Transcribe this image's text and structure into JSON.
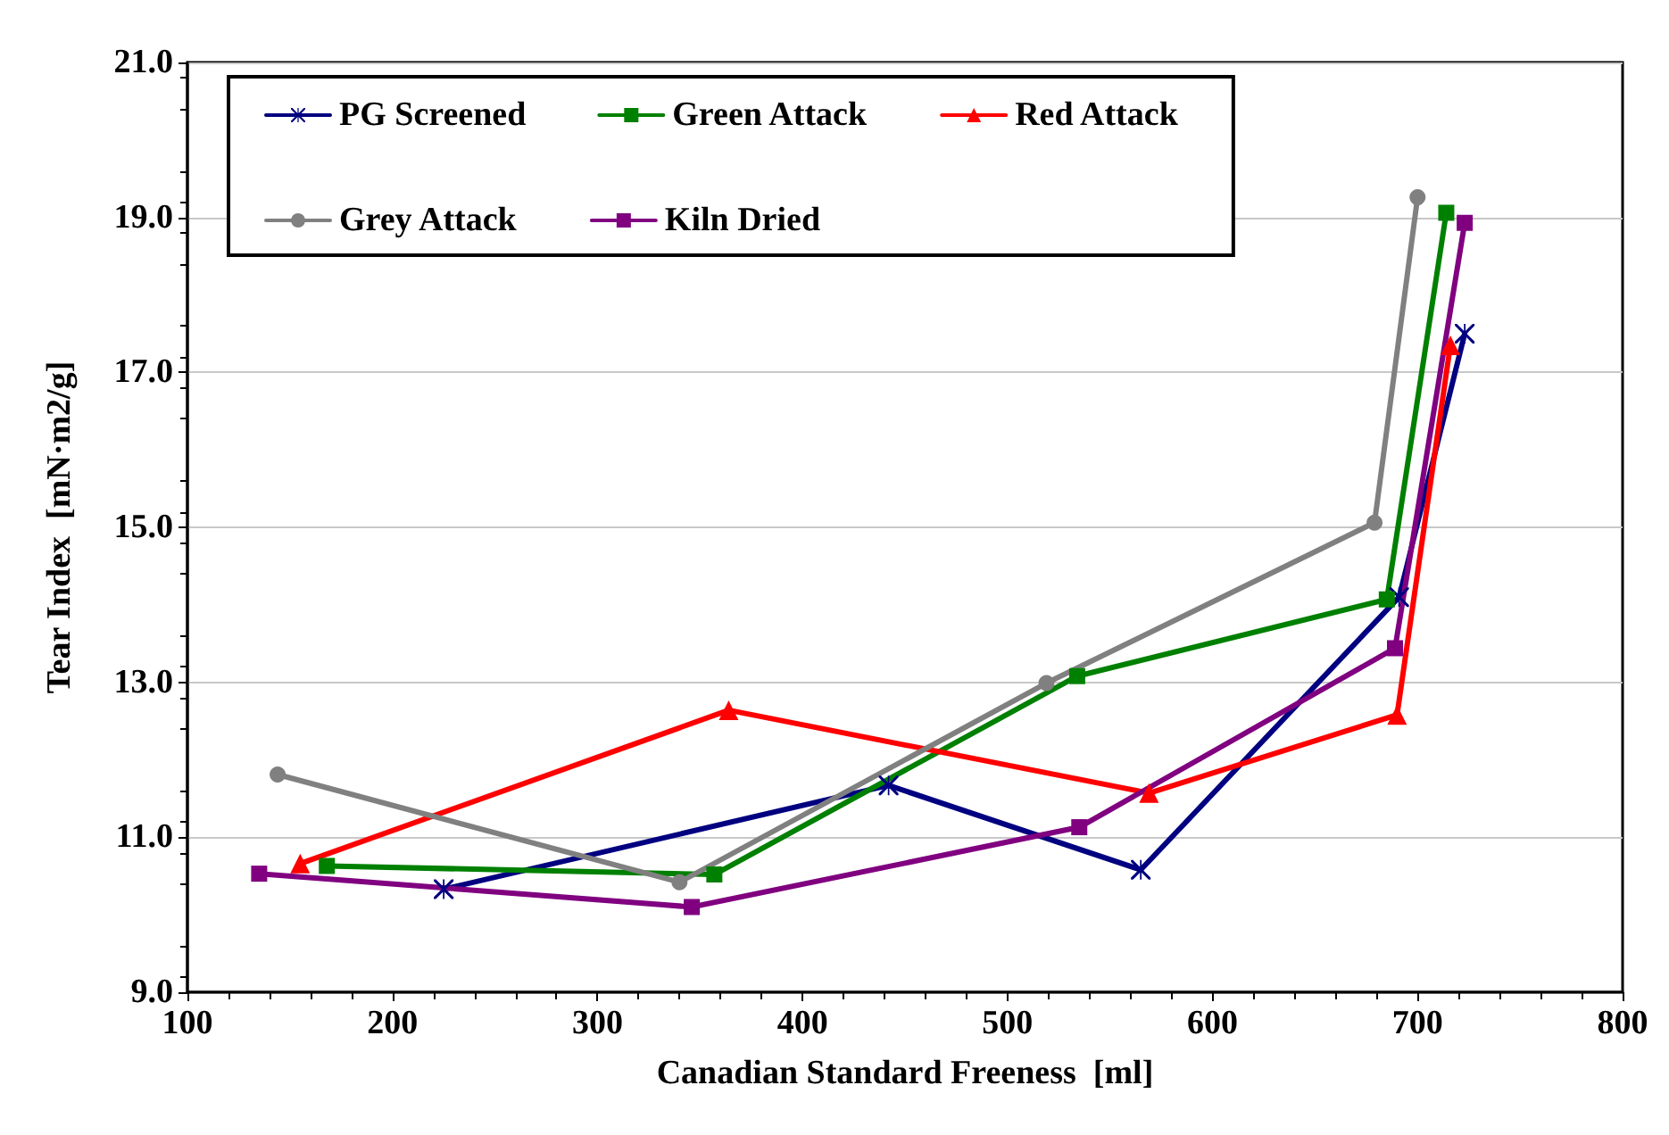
{
  "chart_data": {
    "type": "line",
    "xlabel": "Canadian Standard Freeness  [ml]",
    "ylabel": "Tear Index  [mN·m2/g]",
    "xlim": [
      100,
      800
    ],
    "xticks": [
      100,
      200,
      300,
      400,
      500,
      600,
      700,
      800
    ],
    "ylim": [
      9,
      21
    ],
    "yticks": [
      {
        "value": 9,
        "label": "9.0"
      },
      {
        "value": 11,
        "label": "11.0"
      },
      {
        "value": 13,
        "label": "13.0"
      },
      {
        "value": 15,
        "label": "15.0"
      },
      {
        "value": 17,
        "label": "17.0"
      },
      {
        "value": 19,
        "label": "19.0"
      },
      {
        "value": 21,
        "label": "21.0"
      }
    ],
    "grid": "y",
    "legend": "top left",
    "line_style": "solid",
    "series": [
      {
        "name": "PG Screened",
        "color": "#000080",
        "marker": "cross",
        "x": [
          225,
          442,
          565,
          691,
          723
        ],
        "values": [
          10.33,
          11.67,
          10.58,
          14.1,
          17.5
        ]
      },
      {
        "name": "Green Attack",
        "color": "#008000",
        "marker": "square",
        "x": [
          168,
          357,
          534,
          685,
          714
        ],
        "values": [
          10.63,
          10.52,
          13.08,
          14.07,
          19.06
        ]
      },
      {
        "name": "Red Attack",
        "color": "#ff0000",
        "marker": "triangle",
        "x": [
          155,
          364,
          569,
          690,
          716
        ],
        "values": [
          10.66,
          12.64,
          11.57,
          12.58,
          17.35
        ]
      },
      {
        "name": "Grey Attack",
        "color": "#808080",
        "marker": "circle",
        "x": [
          144,
          340,
          519,
          679,
          700
        ],
        "values": [
          11.81,
          10.42,
          12.99,
          15.06,
          19.26
        ]
      },
      {
        "name": "Kiln Dried",
        "color": "#800080",
        "marker": "square",
        "x": [
          135,
          346,
          535,
          689,
          723
        ],
        "values": [
          10.53,
          10.1,
          11.13,
          13.44,
          18.93
        ]
      }
    ]
  }
}
